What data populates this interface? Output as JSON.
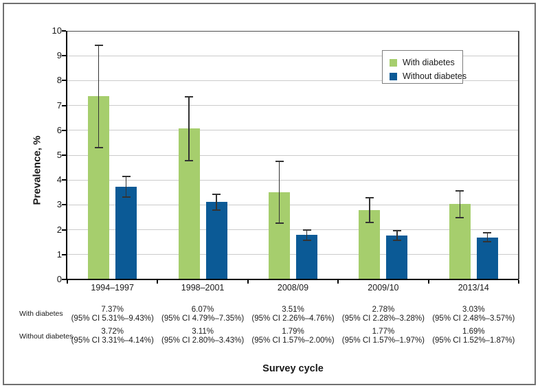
{
  "chart_data": {
    "type": "bar",
    "title": "",
    "xlabel": "Survey cycle",
    "ylabel": "Prevalence, %",
    "categories": [
      "1994–1997",
      "1998–2001",
      "2008/09",
      "2009/10",
      "2013/14"
    ],
    "series": [
      {
        "name": "With diabetes",
        "color": "#a6ce6d",
        "values": [
          7.37,
          6.07,
          3.51,
          2.78,
          3.03
        ],
        "ci_low": [
          5.31,
          4.79,
          2.26,
          2.28,
          2.48
        ],
        "ci_high": [
          9.43,
          7.35,
          4.76,
          3.28,
          3.57
        ]
      },
      {
        "name": "Without diabetes",
        "color": "#0b5a96",
        "values": [
          3.72,
          3.11,
          1.79,
          1.77,
          1.69
        ],
        "ci_low": [
          3.31,
          2.8,
          1.57,
          1.57,
          1.52
        ],
        "ci_high": [
          4.14,
          3.43,
          2.0,
          1.97,
          1.87
        ]
      }
    ],
    "ylim": [
      0,
      10
    ],
    "ytick_step": 1,
    "grid": true,
    "legend_position": "upper right",
    "error_bars": true
  },
  "legend": {
    "items": [
      {
        "label": "With diabetes",
        "color": "#a6ce6d"
      },
      {
        "label": "Without diabetes",
        "color": "#0b5a96"
      }
    ]
  },
  "table": {
    "rows": [
      {
        "label": "With diabetes",
        "cells": [
          {
            "value": "7.37%",
            "ci": "(95% CI 5.31%–9.43%)"
          },
          {
            "value": "6.07%",
            "ci": "(95% CI 4.79%–7.35%)"
          },
          {
            "value": "3.51%",
            "ci": "(95% CI 2.26%–4.76%)"
          },
          {
            "value": "2.78%",
            "ci": "(95% CI 2.28%–3.28%)"
          },
          {
            "value": "3.03%",
            "ci": "(95% CI 2.48%–3.57%)"
          }
        ]
      },
      {
        "label": "Without diabetes",
        "cells": [
          {
            "value": "3.72%",
            "ci": "(95% CI 3.31%–4.14%)"
          },
          {
            "value": "3.11%",
            "ci": "(95% CI 2.80%–3.43%)"
          },
          {
            "value": "1.79%",
            "ci": "(95% CI 1.57%–2.00%)"
          },
          {
            "value": "1.77%",
            "ci": "(95% CI 1.57%–1.97%)"
          },
          {
            "value": "1.69%",
            "ci": "(95% CI 1.52%–1.87%)"
          }
        ]
      }
    ]
  },
  "colors": {
    "gridline": "#cbcbcb",
    "axis": "#000000",
    "plot_border": "#4f4f4f",
    "error_bar": "#333333",
    "frame_border": "#6f6f6f",
    "text": "#1a1a1a"
  }
}
